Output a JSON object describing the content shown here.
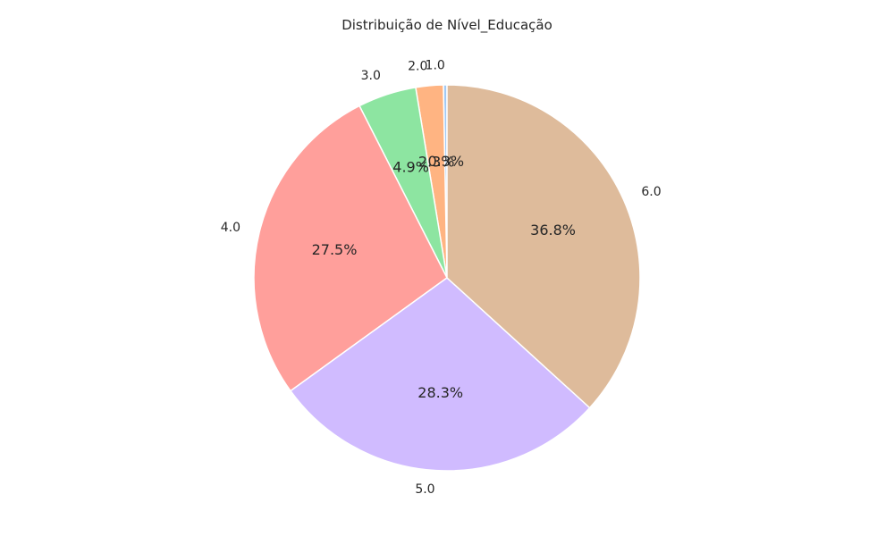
{
  "chart_data": {
    "type": "pie",
    "title": "Distribuição de Nível_Educação",
    "categories": [
      "1.0",
      "2.0",
      "3.0",
      "4.0",
      "5.0",
      "6.0"
    ],
    "values": [
      0.3,
      2.3,
      4.9,
      27.5,
      28.3,
      36.8
    ],
    "value_labels": [
      "0.3%",
      "2.3%",
      "4.9%",
      "27.5%",
      "28.3%",
      "36.8%"
    ],
    "colors": [
      "#a1c9f4",
      "#ffb482",
      "#8de5a1",
      "#ff9f9b",
      "#d0bbff",
      "#debb9b"
    ],
    "start_angle": "90 degrees (top)",
    "direction": "counterclockwise",
    "legend": "none"
  }
}
